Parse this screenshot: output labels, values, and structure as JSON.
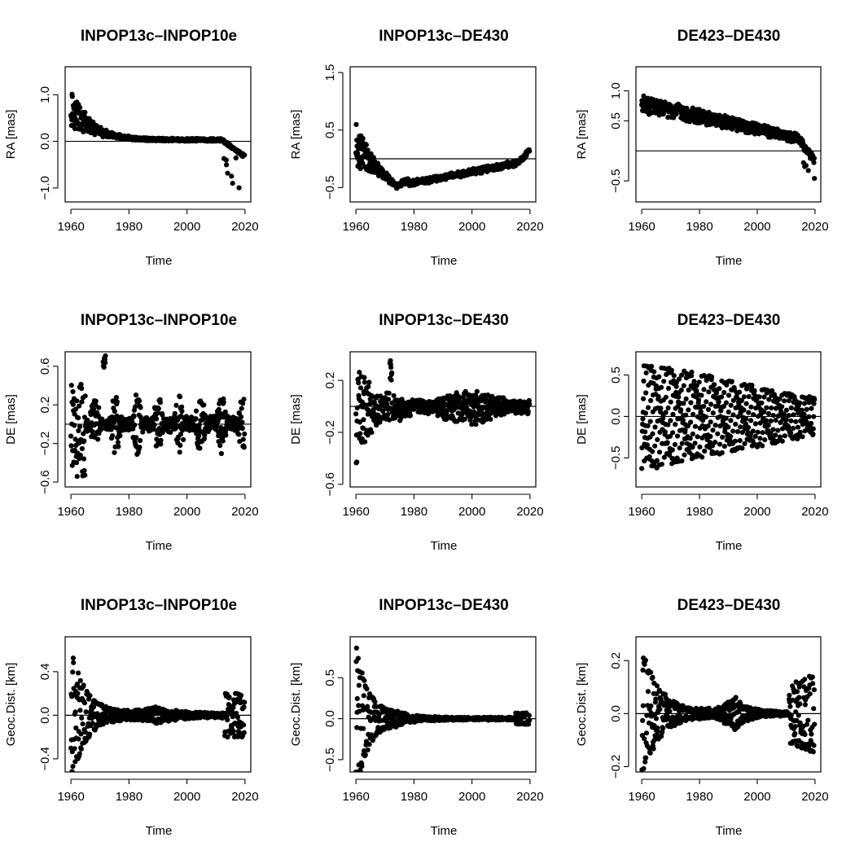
{
  "figure": {
    "background": "#ffffff",
    "point_color": "#000000"
  },
  "chart_data": [
    {
      "type": "scatter",
      "title": "INPOP13c–INPOP10e",
      "xlabel": "Time",
      "ylabel": "RA [mas]",
      "xlim": [
        1958,
        2022
      ],
      "ylim": [
        -1.3,
        1.6
      ],
      "xticks": [
        1960,
        1980,
        2000,
        2020
      ],
      "xtick_labels": [
        "1960",
        "1980",
        "2000",
        "2020"
      ],
      "yticks": [
        -1.0,
        0.0,
        1.0
      ],
      "ytick_labels": [
        "−1.0",
        "0.0",
        "1.0"
      ],
      "hline": 0,
      "trend": "early_decay_late_dip",
      "points_estimated": true
    },
    {
      "type": "scatter",
      "title": "INPOP13c–DE430",
      "xlabel": "Time",
      "ylabel": "RA [mas]",
      "xlim": [
        1958,
        2022
      ],
      "ylim": [
        -0.75,
        1.6
      ],
      "xticks": [
        1960,
        1980,
        2000,
        2020
      ],
      "xtick_labels": [
        "1960",
        "1980",
        "2000",
        "2020"
      ],
      "yticks": [
        -0.5,
        0.5,
        1.5
      ],
      "ytick_labels": [
        "−0.5",
        "0.5",
        "1.5"
      ],
      "hline": 0,
      "trend": "dip_then_rise",
      "points_estimated": true
    },
    {
      "type": "scatter",
      "title": "DE423–DE430",
      "xlabel": "Time",
      "ylabel": "RA [mas]",
      "xlim": [
        1958,
        2022
      ],
      "ylim": [
        -0.85,
        1.4
      ],
      "xticks": [
        1960,
        1980,
        2000,
        2020
      ],
      "xtick_labels": [
        "1960",
        "1980",
        "2000",
        "2020"
      ],
      "yticks": [
        -0.5,
        0.5,
        1.0
      ],
      "ytick_labels": [
        "−0.5",
        "0.5",
        "1.0"
      ],
      "hline": 0,
      "trend": "linear_decline",
      "points_estimated": true
    },
    {
      "type": "scatter",
      "title": "INPOP13c–INPOP10e",
      "xlabel": "Time",
      "ylabel": "DE [mas]",
      "xlim": [
        1958,
        2022
      ],
      "ylim": [
        -0.65,
        0.75
      ],
      "xticks": [
        1960,
        1980,
        2000,
        2020
      ],
      "xtick_labels": [
        "1960",
        "1980",
        "2000",
        "2020"
      ],
      "yticks": [
        -0.6,
        -0.2,
        0.2,
        0.6
      ],
      "ytick_labels": [
        "−0.6",
        "−0.2",
        "0.2",
        "0.6"
      ],
      "hline": 0,
      "trend": "periodic_bursts",
      "points_estimated": true
    },
    {
      "type": "scatter",
      "title": "INPOP13c–DE430",
      "xlabel": "Time",
      "ylabel": "DE [mas]",
      "xlim": [
        1958,
        2022
      ],
      "ylim": [
        -0.62,
        0.42
      ],
      "xticks": [
        1960,
        1980,
        2000,
        2020
      ],
      "xtick_labels": [
        "1960",
        "1980",
        "2000",
        "2020"
      ],
      "yticks": [
        -0.6,
        -0.2,
        0.2
      ],
      "ytick_labels": [
        "−0.6",
        "−0.2",
        "0.2"
      ],
      "hline": 0,
      "trend": "early_spikes_flat",
      "points_estimated": true
    },
    {
      "type": "scatter",
      "title": "DE423–DE430",
      "xlabel": "Time",
      "ylabel": "DE [mas]",
      "xlim": [
        1958,
        2022
      ],
      "ylim": [
        -0.85,
        0.78
      ],
      "xticks": [
        1960,
        1980,
        2000,
        2020
      ],
      "xtick_labels": [
        "1960",
        "1980",
        "2000",
        "2020"
      ],
      "yticks": [
        -0.5,
        0.0,
        0.5
      ],
      "ytick_labels": [
        "−0.5",
        "0.0",
        "0.5"
      ],
      "hline": 0,
      "trend": "crosshatch_narrowing",
      "points_estimated": true
    },
    {
      "type": "scatter",
      "title": "INPOP13c–INPOP10e",
      "xlabel": "Time",
      "ylabel": "Geoc.Dist. [km]",
      "xlim": [
        1958,
        2022
      ],
      "ylim": [
        -0.52,
        0.72
      ],
      "xticks": [
        1960,
        1980,
        2000,
        2020
      ],
      "xtick_labels": [
        "1960",
        "1980",
        "2000",
        "2020"
      ],
      "yticks": [
        -0.4,
        0.0,
        0.4
      ],
      "ytick_labels": [
        "−0.4",
        "0.0",
        "0.4"
      ],
      "hline": 0,
      "trend": "damped_oscillation_late_burst",
      "points_estimated": true
    },
    {
      "type": "scatter",
      "title": "INPOP13c–DE430",
      "xlabel": "Time",
      "ylabel": "Geoc.Dist. [km]",
      "xlim": [
        1958,
        2022
      ],
      "ylim": [
        -0.65,
        1.0
      ],
      "xticks": [
        1960,
        1980,
        2000,
        2020
      ],
      "xtick_labels": [
        "1960",
        "1980",
        "2000",
        "2020"
      ],
      "yticks": [
        -0.5,
        0.0,
        0.5
      ],
      "ytick_labels": [
        "−0.5",
        "0.0",
        "0.5"
      ],
      "hline": 0,
      "trend": "damped_oscillation",
      "points_estimated": true
    },
    {
      "type": "scatter",
      "title": "DE423–DE430",
      "xlabel": "Time",
      "ylabel": "Geoc.Dist. [km]",
      "xlim": [
        1958,
        2022
      ],
      "ylim": [
        -0.22,
        0.29
      ],
      "xticks": [
        1960,
        1980,
        2000,
        2020
      ],
      "xtick_labels": [
        "1960",
        "1980",
        "2000",
        "2020"
      ],
      "yticks": [
        -0.2,
        0.0,
        0.2
      ],
      "ytick_labels": [
        "−0.2",
        "0.0",
        "0.2"
      ],
      "hline": 0,
      "trend": "damped_oscillation_late_burst_big",
      "points_estimated": true
    }
  ]
}
